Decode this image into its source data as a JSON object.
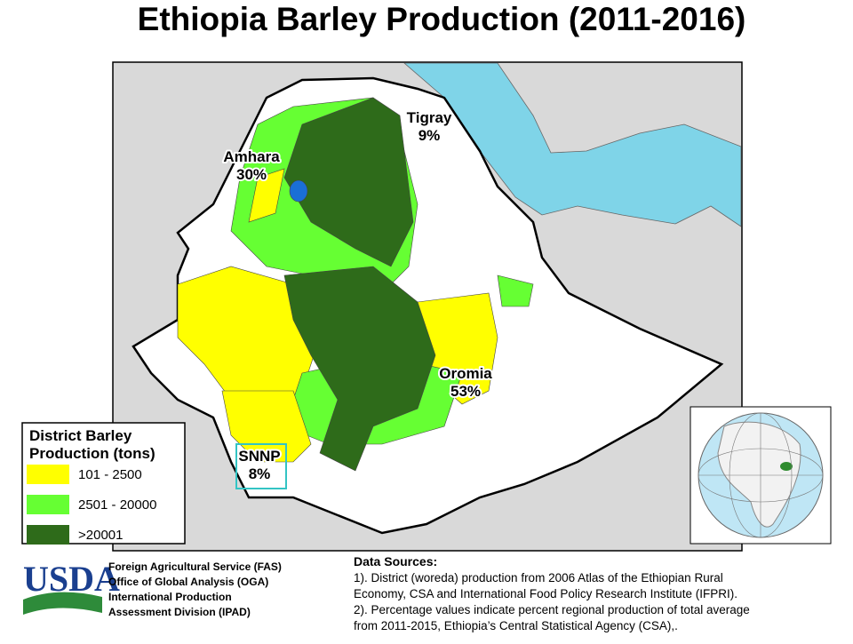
{
  "title": "Ethiopia Barley Production (2011-2016)",
  "legend": {
    "title_lines": [
      "District Barley",
      "Production (tons)"
    ],
    "items": [
      {
        "label": "101 - 2500",
        "color": "#ffff00"
      },
      {
        "label": "2501 - 20000",
        "color": "#66ff33"
      },
      {
        "label": ">20001",
        "color": "#2e6b1a"
      }
    ]
  },
  "regions": [
    {
      "name": "Tigray",
      "share": "9%"
    },
    {
      "name": "Amhara",
      "share": "30%"
    },
    {
      "name": "Oromia",
      "share": "53%"
    },
    {
      "name": "SNNP",
      "share": "8%"
    }
  ],
  "usda": {
    "logo": "USDA",
    "lines": [
      "Foreign Agricultural Service (FAS)",
      "Office of Global Analysis  (OGA)",
      "International Production",
      "Assessment Division (IPAD)"
    ]
  },
  "sources": {
    "title": "Data Sources:",
    "lines": [
      "1). District (woreda) production from 2006 Atlas of the Ethiopian Rural",
      "Economy, CSA and International  Food Policy Research Institute  (IFPRI).",
      "2). Percentage values  indicate percent regional production of total average",
      "from 2011-2015, Ethiopia’s Central Statistical Agency (CSA),."
    ]
  }
}
